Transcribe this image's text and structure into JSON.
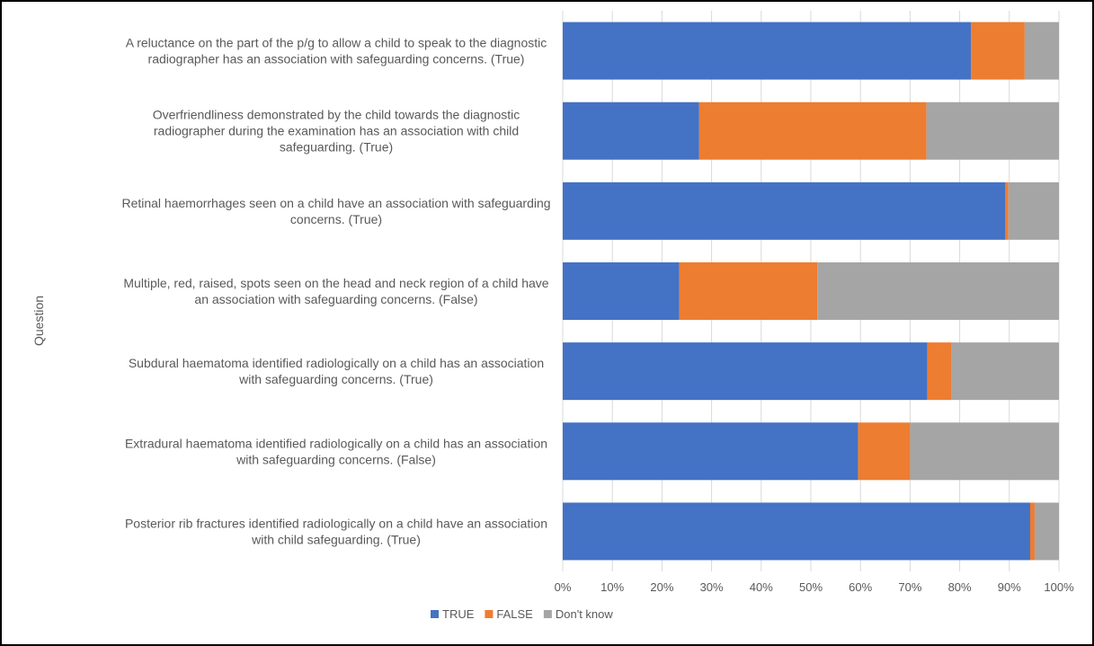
{
  "chart_data": {
    "type": "bar",
    "orientation": "horizontal",
    "stacked": "percent",
    "ylabel": "Question",
    "xlabel": "",
    "xlim": [
      0,
      100
    ],
    "x_ticks": [
      "0%",
      "10%",
      "20%",
      "30%",
      "40%",
      "50%",
      "60%",
      "70%",
      "80%",
      "90%",
      "100%"
    ],
    "grid": true,
    "legend_position": "bottom",
    "categories": [
      [
        "A reluctance on the part of the p/g to allow a child to speak to the diagnostic",
        "radiographer has an association with safeguarding concerns.   (True)"
      ],
      [
        "Overfriendliness demonstrated by the child towards the diagnostic",
        "radiographer during the examination has an association with child",
        "safeguarding.  (True)"
      ],
      [
        "Retinal haemorrhages seen on a child have an association with safeguarding",
        "concerns.  (True)"
      ],
      [
        "Multiple, red, raised, spots seen on the head and neck region of a child have",
        "an association with safeguarding concerns. (False)"
      ],
      [
        "Subdural haematoma identified radiologically on a child has an association",
        "with safeguarding concerns.  (True)"
      ],
      [
        "Extradural haematoma identified radiologically on a child has an association",
        "with safeguarding concerns.  (False)"
      ],
      [
        "Posterior rib fractures identified radiologically on a child have an association",
        "with child safeguarding.  (True)"
      ]
    ],
    "series": [
      {
        "name": "TRUE",
        "color": "#4472c4",
        "values": [
          82.3,
          27.5,
          89.2,
          23.5,
          73.5,
          59.5,
          94.2
        ]
      },
      {
        "name": "FALSE",
        "color": "#ed7d31",
        "values": [
          10.8,
          45.8,
          0.6,
          27.8,
          4.9,
          10.5,
          0.9
        ]
      },
      {
        "name": "Don't know",
        "color": "#a5a5a5",
        "values": [
          6.9,
          26.7,
          10.2,
          48.7,
          21.6,
          30.0,
          4.9
        ]
      }
    ]
  }
}
